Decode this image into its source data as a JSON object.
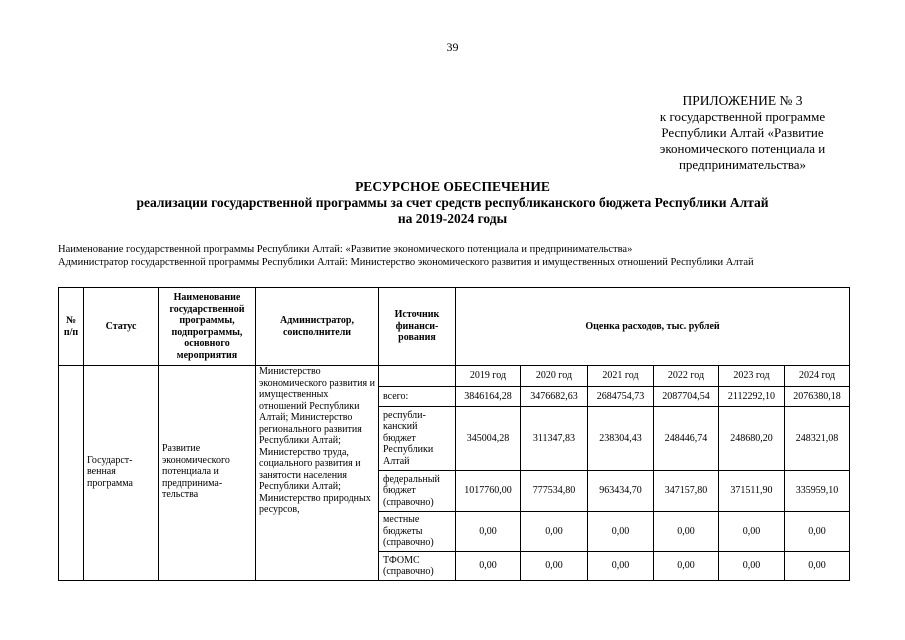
{
  "page_number": "39",
  "appendix": [
    "ПРИЛОЖЕНИЕ № 3",
    "к государственной программе",
    "Республики Алтай «Развитие",
    "экономического потенциала и",
    "предпринимательства»"
  ],
  "title": [
    "РЕСУРСНОЕ ОБЕСПЕЧЕНИЕ",
    "реализации государственной программы за счет средств  республиканского бюджета Республики Алтай",
    "на 2019-2024 годы"
  ],
  "program_name_line": "Наименование государственной программы Республики Алтай: «Развитие экономического потенциала и предпринимательства»",
  "administrator_line": "Администратор государственной программы Республики Алтай: Министерство экономического развития и имущественных отношений Республики Алтай",
  "table": {
    "headers": {
      "num": "№ п/п",
      "status": "Статус",
      "name": "Наименование государственной программы, подпрограммы, основного мероприятия",
      "admin": "Администратор, соисполнители",
      "source": "Источник финанси-рования",
      "costs": "Оценка расходов, тыс. рублей"
    },
    "years": [
      "2019 год",
      "2020 год",
      "2021 год",
      "2022 год",
      "2023 год",
      "2024 год"
    ],
    "status": "Государст-венная программа",
    "name": "Развитие экономического потенциала и предпринима-тельства",
    "admin": "Министерство экономического развития и имущественных отношений Республики Алтай; Министерство регионального развития Республики Алтай; Министерство труда, социального развития и занятости населения Республики Алтай; Министерство природных ресурсов,",
    "rows": [
      {
        "source": "всего:",
        "values": [
          "3846164,28",
          "3476682,63",
          "2684754,73",
          "2087704,54",
          "2112292,10",
          "2076380,18"
        ]
      },
      {
        "source": "республи-канский бюджет Республики Алтай",
        "values": [
          "345004,28",
          "311347,83",
          "238304,43",
          "248446,74",
          "248680,20",
          "248321,08"
        ]
      },
      {
        "source": "федеральный бюджет (справочно)",
        "values": [
          "1017760,00",
          "777534,80",
          "963434,70",
          "347157,80",
          "371511,90",
          "335959,10"
        ]
      },
      {
        "source": "местные бюджеты (справочно)",
        "values": [
          "0,00",
          "0,00",
          "0,00",
          "0,00",
          "0,00",
          "0,00"
        ]
      },
      {
        "source": "ТФОМС (справочно)",
        "values": [
          "0,00",
          "0,00",
          "0,00",
          "0,00",
          "0,00",
          "0,00"
        ]
      }
    ]
  }
}
